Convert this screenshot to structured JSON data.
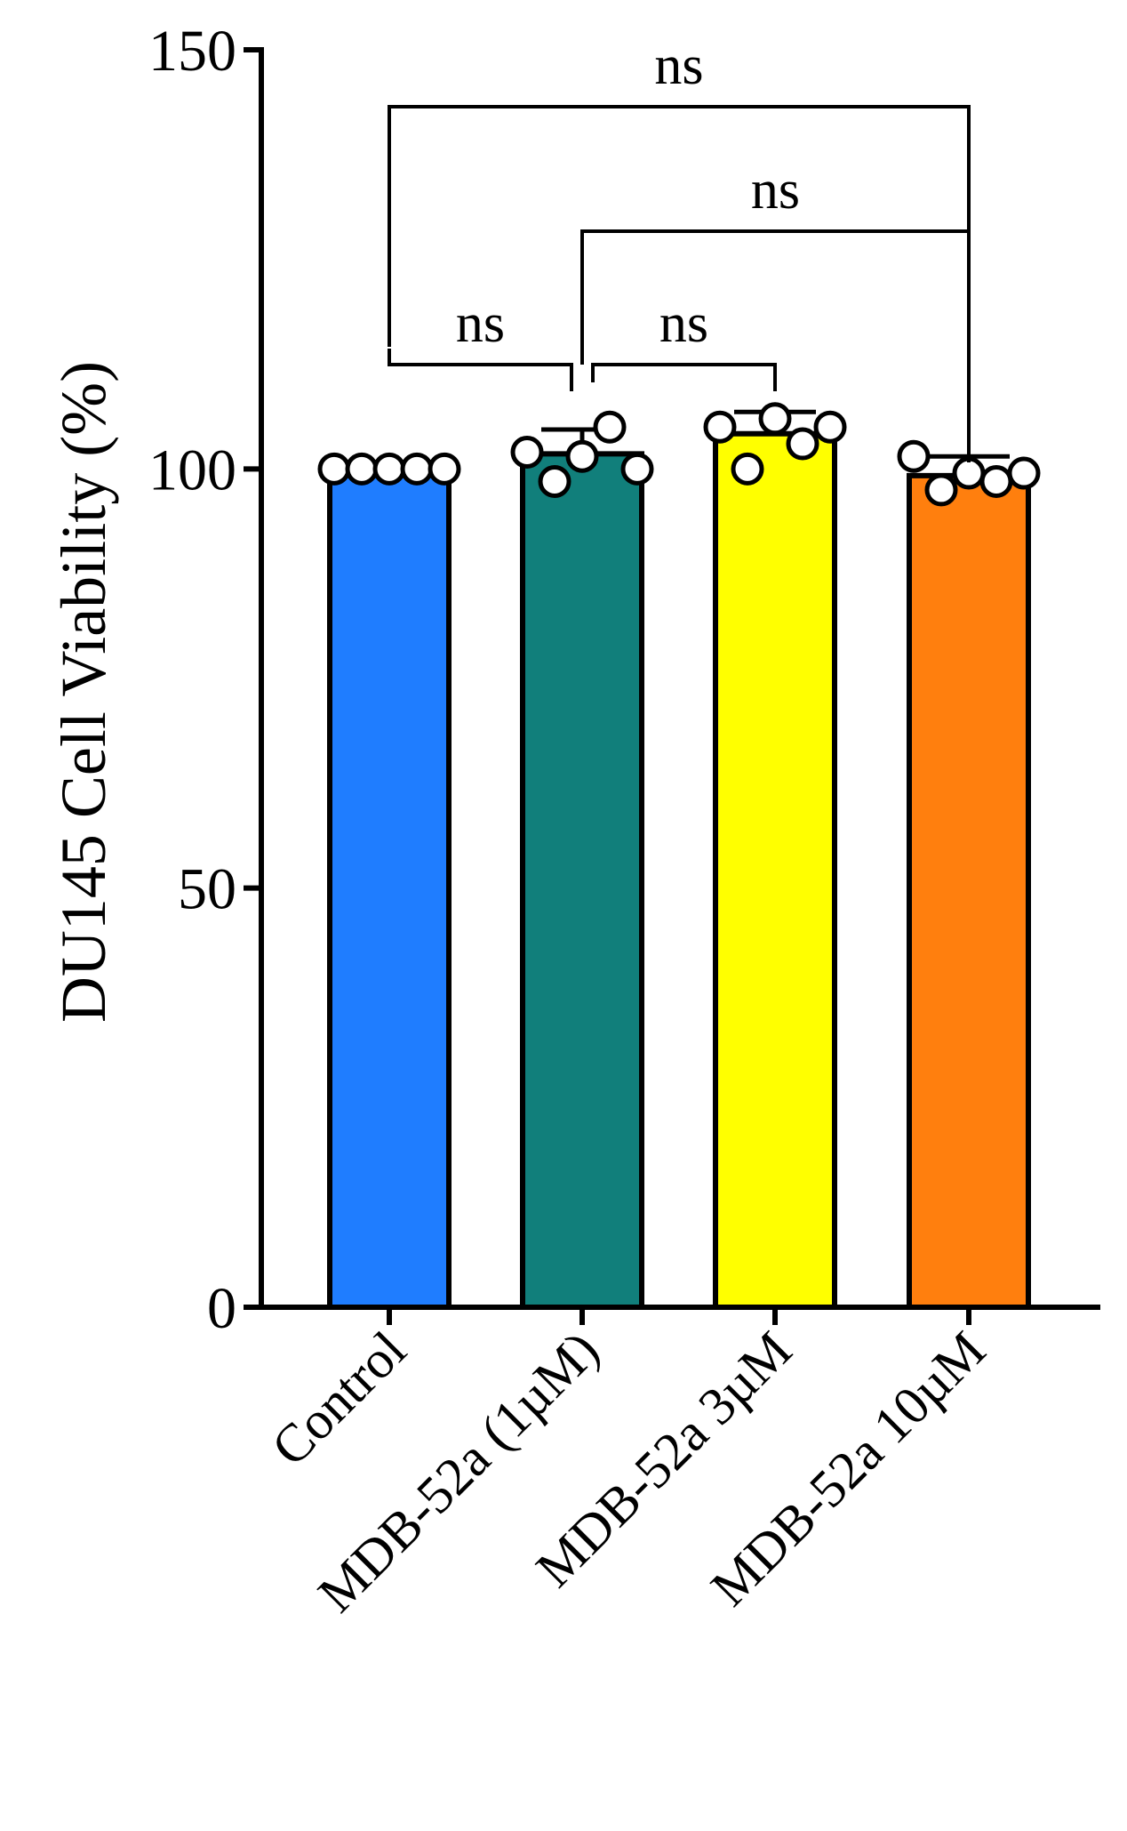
{
  "chart_data": {
    "type": "bar",
    "title": "",
    "xlabel": "",
    "ylabel": "DU145 Cell Viability  (%)",
    "ylim": [
      0,
      150
    ],
    "yticks": [
      0,
      50,
      100,
      150
    ],
    "grid": false,
    "legend": "none",
    "categories": [
      "Control",
      "MDB-52a (1µM)",
      "MDB-52a 3µM",
      "MDB-52a 10µM"
    ],
    "values": [
      100,
      101.8,
      104.2,
      99.2
    ],
    "error_upper": [
      100,
      104.7,
      106.8,
      101.5
    ],
    "colors": [
      "#1f7dff",
      "#117f7b",
      "#ffff00",
      "#ff7f0e"
    ],
    "points": [
      [
        100,
        100,
        100,
        100,
        100
      ],
      [
        102,
        98.5,
        101.5,
        105,
        100
      ],
      [
        105,
        100,
        106,
        103,
        105
      ],
      [
        101.5,
        97.5,
        99.5,
        98.5,
        99.5
      ]
    ],
    "comparisons": [
      {
        "from": 0,
        "to": 1,
        "label": "ns"
      },
      {
        "from": 1,
        "to": 2,
        "label": "ns"
      },
      {
        "from": 1,
        "to": 3,
        "label": "ns"
      },
      {
        "from": 0,
        "to": 3,
        "label": "ns"
      }
    ]
  }
}
